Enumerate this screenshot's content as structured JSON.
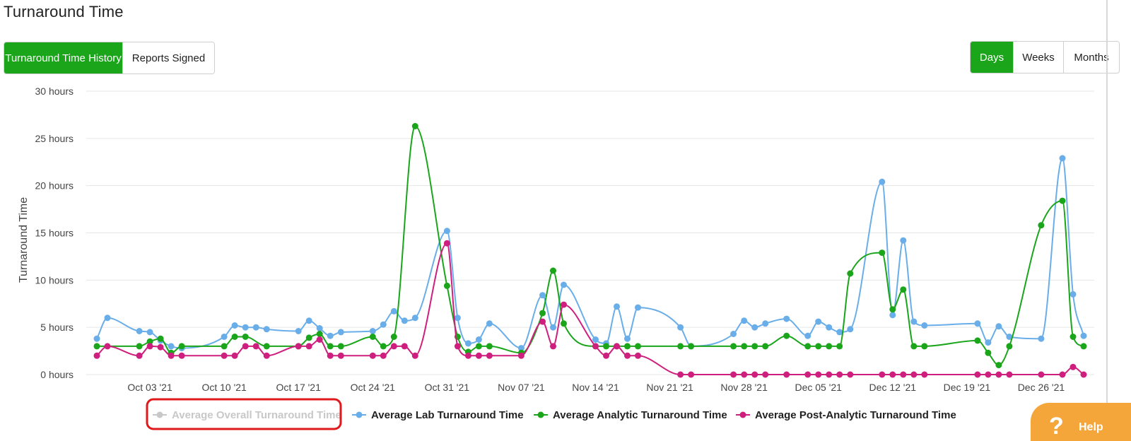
{
  "page": {
    "title": "Turnaround Time"
  },
  "tabs": [
    {
      "label": "Turnaround Time History",
      "active": true
    },
    {
      "label": "Reports Signed",
      "active": false
    }
  ],
  "granularity": [
    {
      "label": "Days",
      "active": true
    },
    {
      "label": "Weeks",
      "active": false
    },
    {
      "label": "Months",
      "active": false
    }
  ],
  "help": {
    "label": "Help",
    "icon": "question-icon"
  },
  "colors": {
    "accent": "#1aa51a",
    "help": "#f5a63a",
    "highlight_box": "#e0191b"
  },
  "chart_data": {
    "type": "line",
    "ylabel": "Turnaround Time",
    "xlabel": "",
    "x_unit": "date 2021",
    "ylim": [
      0,
      30
    ],
    "xlim": [
      "2021-09-27",
      "2021-12-31"
    ],
    "y_ticks": [
      "0 hours",
      "5 hours",
      "10 hours",
      "15 hours",
      "20 hours",
      "25 hours",
      "30 hours"
    ],
    "y_tick_values": [
      0,
      5,
      10,
      15,
      20,
      25,
      30
    ],
    "x_ticks": [
      {
        "date": "2021-10-03",
        "label": "Oct 03 '21"
      },
      {
        "date": "2021-10-10",
        "label": "Oct 10 '21"
      },
      {
        "date": "2021-10-17",
        "label": "Oct 17 '21"
      },
      {
        "date": "2021-10-24",
        "label": "Oct 24 '21"
      },
      {
        "date": "2021-10-31",
        "label": "Oct 31 '21"
      },
      {
        "date": "2021-11-07",
        "label": "Nov 07 '21"
      },
      {
        "date": "2021-11-14",
        "label": "Nov 14 '21"
      },
      {
        "date": "2021-11-21",
        "label": "Nov 21 '21"
      },
      {
        "date": "2021-11-28",
        "label": "Nov 28 '21"
      },
      {
        "date": "2021-12-05",
        "label": "Dec 05 '21"
      },
      {
        "date": "2021-12-12",
        "label": "Dec 12 '21"
      },
      {
        "date": "2021-12-19",
        "label": "Dec 19 '21"
      },
      {
        "date": "2021-12-26",
        "label": "Dec 26 '21"
      }
    ],
    "grid": true,
    "legend_position": "bottom-center",
    "series": [
      {
        "name": "Average Overall Turnaround Time",
        "color": "#c8c8c8",
        "hidden": true,
        "points": []
      },
      {
        "name": "Average Lab Turnaround Time",
        "color": "#6aaee9",
        "hidden": false,
        "points": [
          [
            "2021-09-28",
            3.8
          ],
          [
            "2021-09-29",
            6.0
          ],
          [
            "2021-10-02",
            4.6
          ],
          [
            "2021-10-03",
            4.5
          ],
          [
            "2021-10-04",
            3.6
          ],
          [
            "2021-10-05",
            3.0
          ],
          [
            "2021-10-06",
            2.8
          ],
          [
            "2021-10-10",
            4.0
          ],
          [
            "2021-10-11",
            5.2
          ],
          [
            "2021-10-12",
            5.0
          ],
          [
            "2021-10-13",
            5.0
          ],
          [
            "2021-10-14",
            4.8
          ],
          [
            "2021-10-17",
            4.6
          ],
          [
            "2021-10-18",
            5.7
          ],
          [
            "2021-10-19",
            4.9
          ],
          [
            "2021-10-20",
            4.1
          ],
          [
            "2021-10-21",
            4.5
          ],
          [
            "2021-10-24",
            4.6
          ],
          [
            "2021-10-25",
            5.3
          ],
          [
            "2021-10-26",
            6.7
          ],
          [
            "2021-10-27",
            5.7
          ],
          [
            "2021-10-28",
            6.0
          ],
          [
            "2021-10-31",
            15.2
          ],
          [
            "2021-11-01",
            6.0
          ],
          [
            "2021-11-02",
            3.3
          ],
          [
            "2021-11-03",
            3.7
          ],
          [
            "2021-11-04",
            5.4
          ],
          [
            "2021-11-07",
            2.8
          ],
          [
            "2021-11-09",
            8.4
          ],
          [
            "2021-11-10",
            5.0
          ],
          [
            "2021-11-11",
            9.5
          ],
          [
            "2021-11-14",
            3.7
          ],
          [
            "2021-11-15",
            3.3
          ],
          [
            "2021-11-16",
            7.2
          ],
          [
            "2021-11-17",
            3.8
          ],
          [
            "2021-11-18",
            7.1
          ],
          [
            "2021-11-22",
            5.0
          ],
          [
            "2021-11-23",
            3.0
          ],
          [
            "2021-11-27",
            4.3
          ],
          [
            "2021-11-28",
            5.7
          ],
          [
            "2021-11-29",
            5.0
          ],
          [
            "2021-11-30",
            5.4
          ],
          [
            "2021-12-02",
            5.9
          ],
          [
            "2021-12-04",
            4.1
          ],
          [
            "2021-12-05",
            5.6
          ],
          [
            "2021-12-06",
            5.0
          ],
          [
            "2021-12-07",
            4.5
          ],
          [
            "2021-12-08",
            4.8
          ],
          [
            "2021-12-11",
            20.4
          ],
          [
            "2021-12-12",
            6.3
          ],
          [
            "2021-12-13",
            14.2
          ],
          [
            "2021-12-14",
            5.6
          ],
          [
            "2021-12-15",
            5.2
          ],
          [
            "2021-12-20",
            5.4
          ],
          [
            "2021-12-21",
            3.4
          ],
          [
            "2021-12-22",
            5.1
          ],
          [
            "2021-12-23",
            4.0
          ],
          [
            "2021-12-26",
            3.8
          ],
          [
            "2021-12-28",
            22.9
          ],
          [
            "2021-12-29",
            8.5
          ],
          [
            "2021-12-30",
            4.1
          ]
        ]
      },
      {
        "name": "Average Analytic Turnaround Time",
        "color": "#1aa51a",
        "hidden": false,
        "points": [
          [
            "2021-09-28",
            3.0
          ],
          [
            "2021-10-02",
            3.0
          ],
          [
            "2021-10-03",
            3.5
          ],
          [
            "2021-10-04",
            3.8
          ],
          [
            "2021-10-05",
            2.3
          ],
          [
            "2021-10-06",
            3.0
          ],
          [
            "2021-10-10",
            3.0
          ],
          [
            "2021-10-11",
            4.0
          ],
          [
            "2021-10-12",
            4.0
          ],
          [
            "2021-10-14",
            3.0
          ],
          [
            "2021-10-17",
            3.0
          ],
          [
            "2021-10-18",
            3.9
          ],
          [
            "2021-10-19",
            4.3
          ],
          [
            "2021-10-20",
            3.0
          ],
          [
            "2021-10-21",
            3.0
          ],
          [
            "2021-10-24",
            4.0
          ],
          [
            "2021-10-25",
            3.0
          ],
          [
            "2021-10-26",
            4.0
          ],
          [
            "2021-10-28",
            26.3
          ],
          [
            "2021-10-31",
            9.4
          ],
          [
            "2021-11-01",
            4.0
          ],
          [
            "2021-11-02",
            2.4
          ],
          [
            "2021-11-03",
            3.0
          ],
          [
            "2021-11-04",
            3.0
          ],
          [
            "2021-11-07",
            2.3
          ],
          [
            "2021-11-09",
            6.5
          ],
          [
            "2021-11-10",
            11.0
          ],
          [
            "2021-11-11",
            5.4
          ],
          [
            "2021-11-14",
            3.0
          ],
          [
            "2021-11-15",
            3.0
          ],
          [
            "2021-11-16",
            3.0
          ],
          [
            "2021-11-17",
            3.0
          ],
          [
            "2021-11-18",
            3.0
          ],
          [
            "2021-11-22",
            3.0
          ],
          [
            "2021-11-23",
            3.0
          ],
          [
            "2021-11-27",
            3.0
          ],
          [
            "2021-11-28",
            3.0
          ],
          [
            "2021-11-29",
            3.0
          ],
          [
            "2021-11-30",
            3.0
          ],
          [
            "2021-12-02",
            4.1
          ],
          [
            "2021-12-04",
            3.0
          ],
          [
            "2021-12-05",
            3.0
          ],
          [
            "2021-12-06",
            3.0
          ],
          [
            "2021-12-07",
            3.0
          ],
          [
            "2021-12-08",
            10.7
          ],
          [
            "2021-12-11",
            12.9
          ],
          [
            "2021-12-12",
            6.9
          ],
          [
            "2021-12-13",
            9.0
          ],
          [
            "2021-12-14",
            3.0
          ],
          [
            "2021-12-15",
            3.0
          ],
          [
            "2021-12-20",
            3.6
          ],
          [
            "2021-12-21",
            2.3
          ],
          [
            "2021-12-22",
            1.0
          ],
          [
            "2021-12-23",
            3.0
          ],
          [
            "2021-12-26",
            15.8
          ],
          [
            "2021-12-28",
            18.4
          ],
          [
            "2021-12-29",
            4.0
          ],
          [
            "2021-12-30",
            3.0
          ]
        ]
      },
      {
        "name": "Average Post-Analytic Turnaround Time",
        "color": "#cf1f7e",
        "hidden": false,
        "points": [
          [
            "2021-09-28",
            2.0
          ],
          [
            "2021-09-29",
            3.0
          ],
          [
            "2021-10-02",
            2.0
          ],
          [
            "2021-10-03",
            3.0
          ],
          [
            "2021-10-04",
            2.9
          ],
          [
            "2021-10-05",
            2.0
          ],
          [
            "2021-10-06",
            2.0
          ],
          [
            "2021-10-10",
            2.0
          ],
          [
            "2021-10-11",
            2.0
          ],
          [
            "2021-10-12",
            3.0
          ],
          [
            "2021-10-13",
            3.0
          ],
          [
            "2021-10-14",
            2.0
          ],
          [
            "2021-10-17",
            3.0
          ],
          [
            "2021-10-18",
            3.0
          ],
          [
            "2021-10-19",
            3.7
          ],
          [
            "2021-10-20",
            2.0
          ],
          [
            "2021-10-21",
            2.0
          ],
          [
            "2021-10-24",
            2.0
          ],
          [
            "2021-10-25",
            2.0
          ],
          [
            "2021-10-26",
            3.0
          ],
          [
            "2021-10-27",
            3.0
          ],
          [
            "2021-10-28",
            2.0
          ],
          [
            "2021-10-31",
            13.9
          ],
          [
            "2021-11-01",
            3.0
          ],
          [
            "2021-11-02",
            2.0
          ],
          [
            "2021-11-03",
            2.0
          ],
          [
            "2021-11-04",
            2.0
          ],
          [
            "2021-11-07",
            2.0
          ],
          [
            "2021-11-09",
            5.6
          ],
          [
            "2021-11-10",
            3.0
          ],
          [
            "2021-11-11",
            7.4
          ],
          [
            "2021-11-14",
            3.0
          ],
          [
            "2021-11-15",
            2.0
          ],
          [
            "2021-11-16",
            3.0
          ],
          [
            "2021-11-17",
            2.0
          ],
          [
            "2021-11-18",
            2.0
          ],
          [
            "2021-11-22",
            0.0
          ],
          [
            "2021-11-23",
            0.0
          ],
          [
            "2021-11-27",
            0.0
          ],
          [
            "2021-11-28",
            0.0
          ],
          [
            "2021-11-29",
            0.0
          ],
          [
            "2021-11-30",
            0.0
          ],
          [
            "2021-12-02",
            0.0
          ],
          [
            "2021-12-04",
            0.0
          ],
          [
            "2021-12-05",
            0.0
          ],
          [
            "2021-12-06",
            0.0
          ],
          [
            "2021-12-07",
            0.0
          ],
          [
            "2021-12-08",
            0.0
          ],
          [
            "2021-12-11",
            0.0
          ],
          [
            "2021-12-12",
            0.0
          ],
          [
            "2021-12-13",
            0.0
          ],
          [
            "2021-12-14",
            0.0
          ],
          [
            "2021-12-15",
            0.0
          ],
          [
            "2021-12-20",
            0.0
          ],
          [
            "2021-12-21",
            0.0
          ],
          [
            "2021-12-22",
            0.0
          ],
          [
            "2021-12-23",
            0.0
          ],
          [
            "2021-12-26",
            0.0
          ],
          [
            "2021-12-28",
            0.0
          ],
          [
            "2021-12-29",
            0.8
          ],
          [
            "2021-12-30",
            0.0
          ]
        ]
      }
    ]
  }
}
